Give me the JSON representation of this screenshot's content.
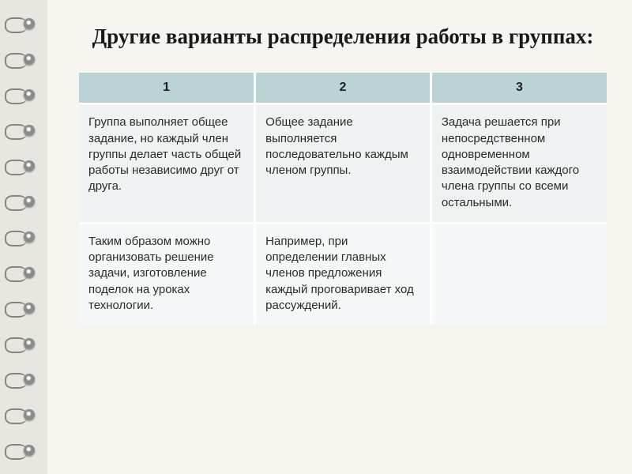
{
  "title": "Другие варианты  распределения работы в группах:",
  "table": {
    "header_bg": "#bcd3d6",
    "row_bg_a": "#eef2f2",
    "row_bg_b": "#f5f8f8",
    "columns": [
      "1",
      "2",
      "3"
    ],
    "rows": [
      [
        "Группа выполняет общее задание, но каждый член группы делает часть общей работы независимо друг от друга.",
        "Общее задание выполняется последовательно каждым членом группы.",
        "Задача решается при непосредственном одновременном взаимодействии каждого члена группы со всеми остальными."
      ],
      [
        "Таким образом можно организовать решение задачи, изготовление поделок на уроках технологии.",
        "Например, при определении главных членов предложения каждый проговаривает ход рассуждений.",
        ""
      ]
    ]
  }
}
